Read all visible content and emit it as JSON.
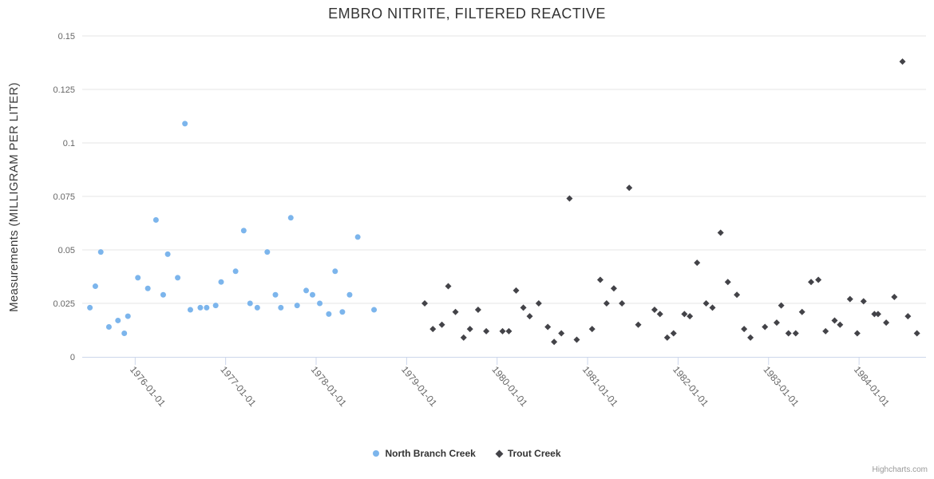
{
  "chart_data": {
    "type": "scatter",
    "title": "EMBRO NITRITE, FILTERED REACTIVE",
    "xlabel": "",
    "ylabel": "Measurements (MILLIGRAM PER LITER)",
    "ylim": [
      0,
      0.15
    ],
    "xlim": [
      1975.415,
      1984.74
    ],
    "grid": "horizontal-only",
    "legend_position": "bottom-center",
    "y_ticks": [
      {
        "value": 0,
        "label": "0"
      },
      {
        "value": 0.025,
        "label": "0.025"
      },
      {
        "value": 0.05,
        "label": "0.05"
      },
      {
        "value": 0.075,
        "label": "0.075"
      },
      {
        "value": 0.1,
        "label": "0.1"
      },
      {
        "value": 0.125,
        "label": "0.125"
      },
      {
        "value": 0.15,
        "label": "0.15"
      }
    ],
    "x_ticks": [
      {
        "value": 1976,
        "label": "1976-01-01"
      },
      {
        "value": 1977,
        "label": "1977-01-01"
      },
      {
        "value": 1978,
        "label": "1978-01-01"
      },
      {
        "value": 1979,
        "label": "1979-01-01"
      },
      {
        "value": 1980,
        "label": "1980-01-01"
      },
      {
        "value": 1981,
        "label": "1981-01-01"
      },
      {
        "value": 1982,
        "label": "1982-01-01"
      },
      {
        "value": 1983,
        "label": "1983-01-01"
      },
      {
        "value": 1984,
        "label": "1984-01-01"
      }
    ],
    "colors": {
      "grid": "#e6e6e6",
      "axis_line": "#ccd6eb",
      "tick": "#ccd6eb",
      "axis_label": "#666666",
      "title": "#333333",
      "legend_text": "#333333",
      "credits": "#999999"
    },
    "series": [
      {
        "name": "North Branch Creek",
        "marker": "circle",
        "color": "#7cb5ec",
        "data": [
          [
            1975.5,
            0.023
          ],
          [
            1975.56,
            0.033
          ],
          [
            1975.62,
            0.049
          ],
          [
            1975.71,
            0.014
          ],
          [
            1975.81,
            0.017
          ],
          [
            1975.88,
            0.011
          ],
          [
            1975.92,
            0.019
          ],
          [
            1976.03,
            0.037
          ],
          [
            1976.14,
            0.032
          ],
          [
            1976.23,
            0.064
          ],
          [
            1976.31,
            0.029
          ],
          [
            1976.36,
            0.048
          ],
          [
            1976.47,
            0.037
          ],
          [
            1976.55,
            0.109
          ],
          [
            1976.61,
            0.022
          ],
          [
            1976.72,
            0.023
          ],
          [
            1976.79,
            0.023
          ],
          [
            1976.89,
            0.024
          ],
          [
            1976.95,
            0.035
          ],
          [
            1977.11,
            0.04
          ],
          [
            1977.2,
            0.059
          ],
          [
            1977.27,
            0.025
          ],
          [
            1977.35,
            0.023
          ],
          [
            1977.46,
            0.049
          ],
          [
            1977.55,
            0.029
          ],
          [
            1977.61,
            0.023
          ],
          [
            1977.72,
            0.065
          ],
          [
            1977.79,
            0.024
          ],
          [
            1977.89,
            0.031
          ],
          [
            1977.96,
            0.029
          ],
          [
            1978.04,
            0.025
          ],
          [
            1978.14,
            0.02
          ],
          [
            1978.21,
            0.04
          ],
          [
            1978.29,
            0.021
          ],
          [
            1978.37,
            0.029
          ],
          [
            1978.46,
            0.056
          ],
          [
            1978.64,
            0.022
          ]
        ]
      },
      {
        "name": "Trout Creek",
        "marker": "diamond",
        "color": "#434348",
        "data": [
          [
            1979.2,
            0.025
          ],
          [
            1979.29,
            0.013
          ],
          [
            1979.39,
            0.015
          ],
          [
            1979.46,
            0.033
          ],
          [
            1979.54,
            0.021
          ],
          [
            1979.63,
            0.009
          ],
          [
            1979.7,
            0.013
          ],
          [
            1979.79,
            0.022
          ],
          [
            1979.88,
            0.012
          ],
          [
            1980.06,
            0.012
          ],
          [
            1980.13,
            0.012
          ],
          [
            1980.21,
            0.031
          ],
          [
            1980.29,
            0.023
          ],
          [
            1980.36,
            0.019
          ],
          [
            1980.46,
            0.025
          ],
          [
            1980.56,
            0.014
          ],
          [
            1980.63,
            0.007
          ],
          [
            1980.71,
            0.011
          ],
          [
            1980.8,
            0.074
          ],
          [
            1980.88,
            0.008
          ],
          [
            1981.05,
            0.013
          ],
          [
            1981.14,
            0.036
          ],
          [
            1981.21,
            0.025
          ],
          [
            1981.29,
            0.032
          ],
          [
            1981.38,
            0.025
          ],
          [
            1981.46,
            0.079
          ],
          [
            1981.56,
            0.015
          ],
          [
            1981.74,
            0.022
          ],
          [
            1981.8,
            0.02
          ],
          [
            1981.88,
            0.009
          ],
          [
            1981.95,
            0.011
          ],
          [
            1982.07,
            0.02
          ],
          [
            1982.13,
            0.019
          ],
          [
            1982.21,
            0.044
          ],
          [
            1982.31,
            0.025
          ],
          [
            1982.38,
            0.023
          ],
          [
            1982.47,
            0.058
          ],
          [
            1982.55,
            0.035
          ],
          [
            1982.65,
            0.029
          ],
          [
            1982.73,
            0.013
          ],
          [
            1982.8,
            0.009
          ],
          [
            1982.96,
            0.014
          ],
          [
            1983.09,
            0.016
          ],
          [
            1983.14,
            0.024
          ],
          [
            1983.22,
            0.011
          ],
          [
            1983.3,
            0.011
          ],
          [
            1983.37,
            0.021
          ],
          [
            1983.47,
            0.035
          ],
          [
            1983.55,
            0.036
          ],
          [
            1983.63,
            0.012
          ],
          [
            1983.73,
            0.017
          ],
          [
            1983.79,
            0.015
          ],
          [
            1983.9,
            0.027
          ],
          [
            1983.98,
            0.011
          ],
          [
            1984.05,
            0.026
          ],
          [
            1984.17,
            0.02
          ],
          [
            1984.21,
            0.02
          ],
          [
            1984.3,
            0.016
          ],
          [
            1984.39,
            0.028
          ],
          [
            1984.48,
            0.138
          ],
          [
            1984.54,
            0.019
          ],
          [
            1984.64,
            0.011
          ]
        ]
      }
    ]
  },
  "credits": {
    "label": "Highcharts.com"
  }
}
